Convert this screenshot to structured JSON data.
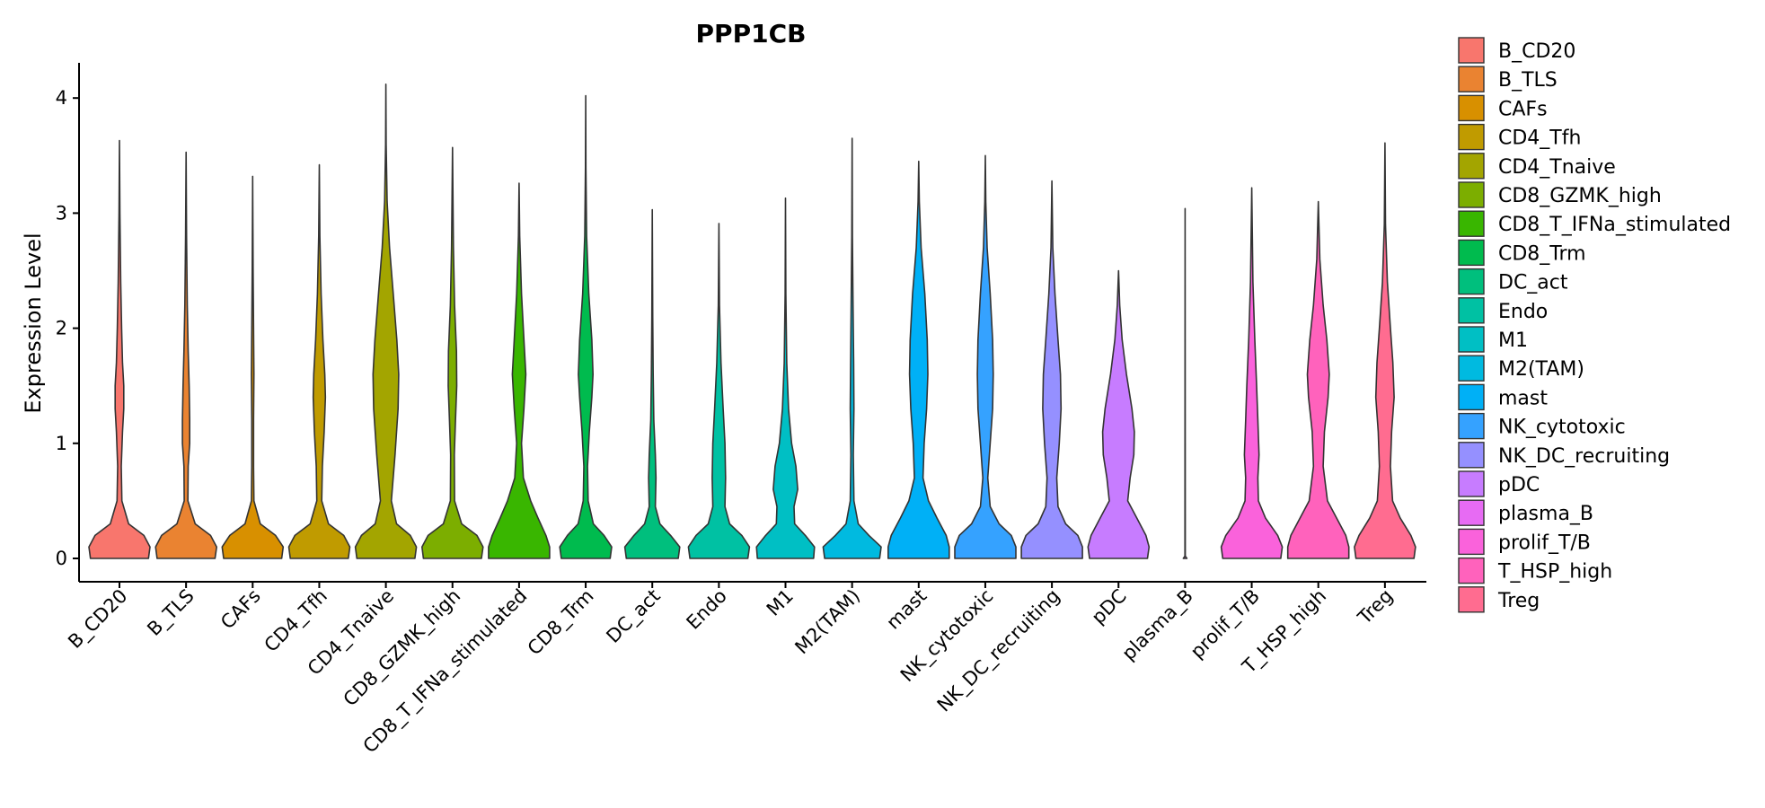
{
  "chart_data": {
    "type": "violin",
    "title": "PPP1CB",
    "xlabel": "",
    "ylabel": "Expression Level",
    "ylim": [
      0,
      4.3
    ],
    "yticks": [
      0,
      1,
      2,
      3,
      4
    ],
    "categories": [
      "B_CD20",
      "B_TLS",
      "CAFs",
      "CD4_Tfh",
      "CD4_Tnaive",
      "CD8_GZMK_high",
      "CD8_T_IFNa_stimulated",
      "CD8_Trm",
      "DC_act",
      "Endo",
      "M1",
      "M2(TAM)",
      "mast",
      "NK_cytotoxic",
      "NK_DC_recruiting",
      "pDC",
      "plasma_B",
      "prolif_T/B",
      "T_HSP_high",
      "Treg"
    ],
    "colors": [
      "#F8766D",
      "#EA8331",
      "#D89000",
      "#C09B00",
      "#A3A500",
      "#7CAE00",
      "#39B600",
      "#00BB4E",
      "#00BF7D",
      "#00C1A3",
      "#00BFC4",
      "#00BAE0",
      "#00B0F6",
      "#35A2FF",
      "#9590FF",
      "#C77CFF",
      "#E76BF3",
      "#FA62DB",
      "#FF62BC",
      "#FF6C90"
    ],
    "grid": false,
    "legend_position": "right",
    "legend_entries": [
      "B_CD20",
      "B_TLS",
      "CAFs",
      "CD4_Tfh",
      "CD4_Tnaive",
      "CD8_GZMK_high",
      "CD8_T_IFNa_stimulated",
      "CD8_Trm",
      "DC_act",
      "Endo",
      "M1",
      "M2(TAM)",
      "mast",
      "NK_cytotoxic",
      "NK_DC_recruiting",
      "pDC",
      "plasma_B",
      "prolif_T/B",
      "T_HSP_high",
      "Treg"
    ],
    "series": [
      {
        "category": "B_CD20",
        "max": 3.63,
        "profile": [
          [
            0,
            0.95
          ],
          [
            0.1,
            1
          ],
          [
            0.2,
            0.8
          ],
          [
            0.3,
            0.3
          ],
          [
            0.5,
            0.08
          ],
          [
            0.8,
            0.06
          ],
          [
            1.1,
            0.1
          ],
          [
            1.3,
            0.14
          ],
          [
            1.5,
            0.14
          ],
          [
            1.7,
            0.1
          ],
          [
            2.0,
            0.07
          ],
          [
            2.4,
            0.04
          ],
          [
            3.0,
            0.015
          ],
          [
            3.63,
            0
          ]
        ]
      },
      {
        "category": "B_TLS",
        "max": 3.53,
        "profile": [
          [
            0,
            0.95
          ],
          [
            0.1,
            1
          ],
          [
            0.2,
            0.8
          ],
          [
            0.3,
            0.3
          ],
          [
            0.5,
            0.06
          ],
          [
            0.8,
            0.07
          ],
          [
            1.0,
            0.12
          ],
          [
            1.2,
            0.12
          ],
          [
            1.5,
            0.1
          ],
          [
            1.8,
            0.07
          ],
          [
            2.2,
            0.04
          ],
          [
            2.8,
            0.015
          ],
          [
            3.53,
            0
          ]
        ]
      },
      {
        "category": "CAFs",
        "max": 3.32,
        "profile": [
          [
            0,
            0.95
          ],
          [
            0.1,
            1
          ],
          [
            0.2,
            0.75
          ],
          [
            0.3,
            0.25
          ],
          [
            0.5,
            0.04
          ],
          [
            0.8,
            0.03
          ],
          [
            1.2,
            0.03
          ],
          [
            1.6,
            0.04
          ],
          [
            2.0,
            0.03
          ],
          [
            2.5,
            0.015
          ],
          [
            3.32,
            0
          ]
        ]
      },
      {
        "category": "CD4_Tfh",
        "max": 3.42,
        "profile": [
          [
            0,
            0.95
          ],
          [
            0.1,
            1
          ],
          [
            0.2,
            0.8
          ],
          [
            0.3,
            0.3
          ],
          [
            0.5,
            0.08
          ],
          [
            0.8,
            0.1
          ],
          [
            1.1,
            0.16
          ],
          [
            1.4,
            0.2
          ],
          [
            1.6,
            0.18
          ],
          [
            1.9,
            0.12
          ],
          [
            2.3,
            0.06
          ],
          [
            2.8,
            0.02
          ],
          [
            3.42,
            0
          ]
        ]
      },
      {
        "category": "CD4_Tnaive",
        "max": 4.12,
        "profile": [
          [
            0,
            0.95
          ],
          [
            0.1,
            1
          ],
          [
            0.2,
            0.8
          ],
          [
            0.3,
            0.35
          ],
          [
            0.5,
            0.18
          ],
          [
            0.9,
            0.3
          ],
          [
            1.3,
            0.4
          ],
          [
            1.6,
            0.42
          ],
          [
            1.9,
            0.36
          ],
          [
            2.3,
            0.24
          ],
          [
            2.7,
            0.12
          ],
          [
            3.1,
            0.04
          ],
          [
            3.6,
            0.01
          ],
          [
            4.12,
            0
          ]
        ]
      },
      {
        "category": "CD8_GZMK_high",
        "max": 3.57,
        "profile": [
          [
            0,
            0.95
          ],
          [
            0.1,
            1
          ],
          [
            0.2,
            0.8
          ],
          [
            0.3,
            0.3
          ],
          [
            0.5,
            0.07
          ],
          [
            0.9,
            0.06
          ],
          [
            1.2,
            0.1
          ],
          [
            1.5,
            0.14
          ],
          [
            1.8,
            0.13
          ],
          [
            2.2,
            0.07
          ],
          [
            2.7,
            0.03
          ],
          [
            3.57,
            0
          ]
        ]
      },
      {
        "category": "CD8_T_IFNa_stimulated",
        "max": 3.26,
        "profile": [
          [
            0,
            1
          ],
          [
            0.1,
            1
          ],
          [
            0.2,
            0.88
          ],
          [
            0.35,
            0.62
          ],
          [
            0.5,
            0.38
          ],
          [
            0.7,
            0.14
          ],
          [
            1.0,
            0.08
          ],
          [
            1.3,
            0.16
          ],
          [
            1.6,
            0.22
          ],
          [
            1.9,
            0.16
          ],
          [
            2.3,
            0.08
          ],
          [
            2.8,
            0.02
          ],
          [
            3.26,
            0
          ]
        ]
      },
      {
        "category": "CD8_Trm",
        "max": 4.02,
        "profile": [
          [
            0,
            0.8
          ],
          [
            0.1,
            0.85
          ],
          [
            0.2,
            0.6
          ],
          [
            0.3,
            0.25
          ],
          [
            0.5,
            0.08
          ],
          [
            0.8,
            0.06
          ],
          [
            1.1,
            0.12
          ],
          [
            1.4,
            0.2
          ],
          [
            1.6,
            0.24
          ],
          [
            1.9,
            0.2
          ],
          [
            2.3,
            0.1
          ],
          [
            2.8,
            0.03
          ],
          [
            3.4,
            0.008
          ],
          [
            4.02,
            0
          ]
        ]
      },
      {
        "category": "DC_act",
        "max": 3.03,
        "profile": [
          [
            0,
            0.85
          ],
          [
            0.1,
            0.9
          ],
          [
            0.2,
            0.6
          ],
          [
            0.3,
            0.25
          ],
          [
            0.45,
            0.1
          ],
          [
            0.7,
            0.12
          ],
          [
            0.9,
            0.1
          ],
          [
            1.2,
            0.05
          ],
          [
            1.6,
            0.03
          ],
          [
            2.1,
            0.015
          ],
          [
            3.03,
            0
          ]
        ]
      },
      {
        "category": "Endo",
        "max": 2.91,
        "profile": [
          [
            0,
            0.95
          ],
          [
            0.1,
            1
          ],
          [
            0.2,
            0.75
          ],
          [
            0.3,
            0.35
          ],
          [
            0.45,
            0.2
          ],
          [
            0.7,
            0.22
          ],
          [
            1.0,
            0.2
          ],
          [
            1.3,
            0.14
          ],
          [
            1.7,
            0.07
          ],
          [
            2.2,
            0.02
          ],
          [
            2.91,
            0
          ]
        ]
      },
      {
        "category": "M1",
        "max": 3.13,
        "profile": [
          [
            0,
            0.92
          ],
          [
            0.1,
            0.95
          ],
          [
            0.2,
            0.65
          ],
          [
            0.3,
            0.3
          ],
          [
            0.45,
            0.28
          ],
          [
            0.6,
            0.4
          ],
          [
            0.8,
            0.34
          ],
          [
            1.0,
            0.2
          ],
          [
            1.3,
            0.1
          ],
          [
            1.7,
            0.04
          ],
          [
            2.3,
            0.012
          ],
          [
            3.13,
            0
          ]
        ]
      },
      {
        "category": "M2(TAM)",
        "max": 3.65,
        "profile": [
          [
            0,
            0.9
          ],
          [
            0.1,
            0.95
          ],
          [
            0.2,
            0.55
          ],
          [
            0.3,
            0.2
          ],
          [
            0.5,
            0.06
          ],
          [
            0.9,
            0.04
          ],
          [
            1.3,
            0.06
          ],
          [
            1.7,
            0.05
          ],
          [
            2.2,
            0.03
          ],
          [
            2.8,
            0.01
          ],
          [
            3.65,
            0
          ]
        ]
      },
      {
        "category": "mast",
        "max": 3.45,
        "profile": [
          [
            0,
            1
          ],
          [
            0.1,
            1
          ],
          [
            0.2,
            0.9
          ],
          [
            0.35,
            0.6
          ],
          [
            0.5,
            0.32
          ],
          [
            0.7,
            0.14
          ],
          [
            1.0,
            0.18
          ],
          [
            1.3,
            0.26
          ],
          [
            1.6,
            0.3
          ],
          [
            1.9,
            0.28
          ],
          [
            2.3,
            0.2
          ],
          [
            2.7,
            0.08
          ],
          [
            3.1,
            0.02
          ],
          [
            3.45,
            0
          ]
        ]
      },
      {
        "category": "NK_cytotoxic",
        "max": 3.5,
        "profile": [
          [
            0,
            1
          ],
          [
            0.1,
            1
          ],
          [
            0.2,
            0.85
          ],
          [
            0.3,
            0.45
          ],
          [
            0.45,
            0.16
          ],
          [
            0.7,
            0.08
          ],
          [
            1.0,
            0.16
          ],
          [
            1.3,
            0.24
          ],
          [
            1.6,
            0.26
          ],
          [
            1.9,
            0.24
          ],
          [
            2.3,
            0.16
          ],
          [
            2.7,
            0.06
          ],
          [
            3.1,
            0.015
          ],
          [
            3.5,
            0
          ]
        ]
      },
      {
        "category": "NK_DC_recruiting",
        "max": 3.28,
        "profile": [
          [
            0,
            1
          ],
          [
            0.1,
            1
          ],
          [
            0.2,
            0.85
          ],
          [
            0.3,
            0.45
          ],
          [
            0.45,
            0.2
          ],
          [
            0.7,
            0.16
          ],
          [
            1.0,
            0.24
          ],
          [
            1.3,
            0.3
          ],
          [
            1.6,
            0.28
          ],
          [
            1.9,
            0.2
          ],
          [
            2.3,
            0.1
          ],
          [
            2.7,
            0.03
          ],
          [
            3.28,
            0
          ]
        ]
      },
      {
        "category": "pDC",
        "max": 2.5,
        "profile": [
          [
            0,
            0.95
          ],
          [
            0.1,
            1
          ],
          [
            0.2,
            0.9
          ],
          [
            0.35,
            0.6
          ],
          [
            0.5,
            0.3
          ],
          [
            0.7,
            0.38
          ],
          [
            0.9,
            0.5
          ],
          [
            1.1,
            0.52
          ],
          [
            1.3,
            0.44
          ],
          [
            1.6,
            0.26
          ],
          [
            1.9,
            0.12
          ],
          [
            2.2,
            0.04
          ],
          [
            2.5,
            0
          ]
        ]
      },
      {
        "category": "plasma_B",
        "max": 3.04,
        "profile": [
          [
            0,
            0.06
          ],
          [
            0.02,
            0.005
          ],
          [
            3.04,
            0
          ]
        ]
      },
      {
        "category": "prolif_T/B",
        "max": 3.22,
        "profile": [
          [
            0,
            0.95
          ],
          [
            0.1,
            1
          ],
          [
            0.2,
            0.85
          ],
          [
            0.35,
            0.45
          ],
          [
            0.5,
            0.22
          ],
          [
            0.7,
            0.2
          ],
          [
            0.9,
            0.24
          ],
          [
            1.2,
            0.2
          ],
          [
            1.5,
            0.16
          ],
          [
            1.9,
            0.1
          ],
          [
            2.4,
            0.04
          ],
          [
            3.22,
            0
          ]
        ]
      },
      {
        "category": "T_HSP_high",
        "max": 3.1,
        "profile": [
          [
            0,
            1
          ],
          [
            0.1,
            1
          ],
          [
            0.2,
            0.9
          ],
          [
            0.35,
            0.6
          ],
          [
            0.5,
            0.3
          ],
          [
            0.8,
            0.16
          ],
          [
            1.1,
            0.2
          ],
          [
            1.4,
            0.32
          ],
          [
            1.6,
            0.36
          ],
          [
            1.9,
            0.28
          ],
          [
            2.2,
            0.16
          ],
          [
            2.6,
            0.05
          ],
          [
            3.1,
            0
          ]
        ]
      },
      {
        "category": "Treg",
        "max": 3.61,
        "profile": [
          [
            0,
            0.95
          ],
          [
            0.1,
            1
          ],
          [
            0.2,
            0.85
          ],
          [
            0.35,
            0.5
          ],
          [
            0.5,
            0.25
          ],
          [
            0.8,
            0.18
          ],
          [
            1.1,
            0.22
          ],
          [
            1.4,
            0.3
          ],
          [
            1.7,
            0.26
          ],
          [
            2.0,
            0.18
          ],
          [
            2.4,
            0.08
          ],
          [
            2.9,
            0.02
          ],
          [
            3.61,
            0
          ]
        ]
      }
    ]
  }
}
